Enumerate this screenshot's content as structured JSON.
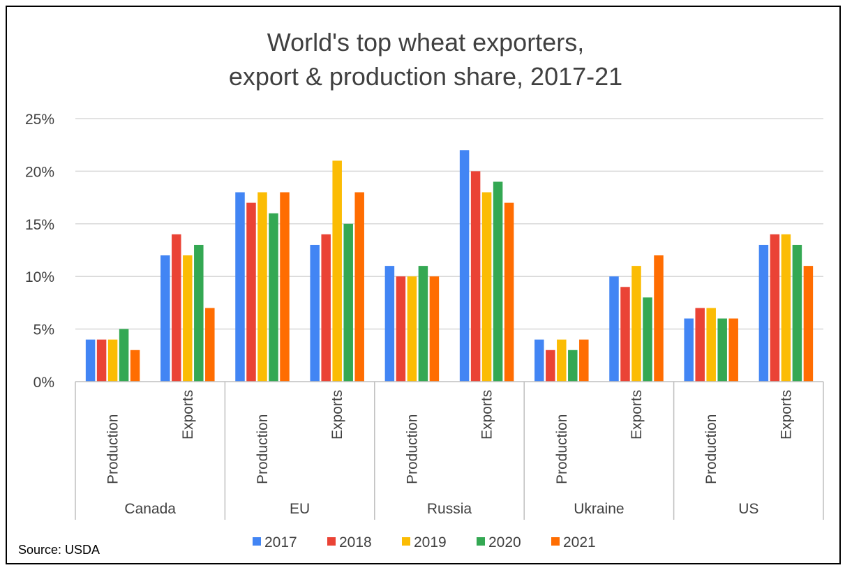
{
  "chart_data": {
    "type": "bar",
    "title": [
      "World's top wheat exporters,",
      "export & production share, 2017-21"
    ],
    "ylim": [
      0,
      25
    ],
    "yticks": [
      0,
      5,
      10,
      15,
      20,
      25
    ],
    "ytick_labels": [
      "0%",
      "5%",
      "10%",
      "15%",
      "20%",
      "25%"
    ],
    "grid": true,
    "legend_position": "bottom",
    "groups": [
      {
        "name": "Canada",
        "categories": [
          "Production",
          "Exports"
        ]
      },
      {
        "name": "EU",
        "categories": [
          "Production",
          "Exports"
        ]
      },
      {
        "name": "Russia",
        "categories": [
          "Production",
          "Exports"
        ]
      },
      {
        "name": "Ukraine",
        "categories": [
          "Production",
          "Exports"
        ]
      },
      {
        "name": "US",
        "categories": [
          "Production",
          "Exports"
        ]
      }
    ],
    "series": [
      {
        "name": "2017",
        "color": "#4285f4",
        "values": [
          4,
          12,
          18,
          13,
          11,
          22,
          4,
          10,
          6,
          13
        ]
      },
      {
        "name": "2018",
        "color": "#ea4335",
        "values": [
          4,
          14,
          17,
          14,
          10,
          20,
          3,
          9,
          7,
          14
        ]
      },
      {
        "name": "2019",
        "color": "#fbbc04",
        "values": [
          4,
          12,
          18,
          21,
          10,
          18,
          4,
          11,
          7,
          14
        ]
      },
      {
        "name": "2020",
        "color": "#34a853",
        "values": [
          5,
          13,
          16,
          15,
          11,
          19,
          3,
          8,
          6,
          13
        ]
      },
      {
        "name": "2021",
        "color": "#ff6d01",
        "values": [
          3,
          7,
          18,
          18,
          10,
          17,
          4,
          12,
          6,
          11
        ]
      }
    ]
  },
  "source": "Source: USDA"
}
